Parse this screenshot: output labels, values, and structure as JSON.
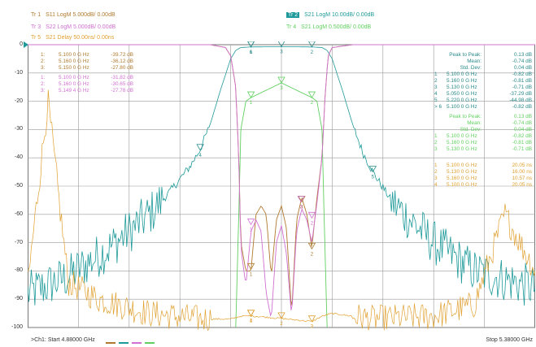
{
  "header": {
    "tr1": {
      "label": "Tr 1",
      "text": "S11 LogM 5.000dB/ 0.00dB"
    },
    "tr2": {
      "label": "Tr 2",
      "text": "S21 LogM 10.00dB/ 0.00dB"
    },
    "tr3": {
      "label": "Tr 3",
      "text": "S22 LogM 5.000dB/ 0.00dB"
    },
    "tr4": {
      "label": "Tr 4",
      "text": "S21 LogM 0.500dB/ 0.00dB"
    },
    "tr5": {
      "label": "Tr 5",
      "text": "S21 Delay 50.00ns/ 0.00ns"
    }
  },
  "colors": {
    "tr1": "#b07a2e",
    "tr2": "#1f9a9a",
    "tr3": "#d070d0",
    "tr4": "#60d060",
    "tr5": "#e0a030"
  },
  "y_ticks": [
    "0",
    "-10",
    "-20",
    "-30",
    "-40",
    "-50",
    "-60",
    "-70",
    "-80",
    "-90",
    "-100"
  ],
  "readouts": {
    "tr1": [
      {
        "n": "1:",
        "f": "5.100 0 G Hz",
        "v": "-39.72 dB"
      },
      {
        "n": "2:",
        "f": "5.160 0 G Hz",
        "v": "-36.12 dB"
      },
      {
        "n": "3:",
        "f": "5.150 0 G Hz",
        "v": "-27.80 dB"
      }
    ],
    "tr3": [
      {
        "n": "1:",
        "f": "5.100 0 G Hz",
        "v": "-31.82 dB"
      },
      {
        "n": "2:",
        "f": "5.160 0 G Hz",
        "v": "-30.65 dB"
      },
      {
        "n": "3:",
        "f": "5.149 4 G Hz",
        "v": "-27.78 dB"
      }
    ],
    "tr2_stats": [
      {
        "k": "Peak to Peak:",
        "v": "0.13 dB"
      },
      {
        "k": "Mean:",
        "v": "-0.74 dB"
      },
      {
        "k": "Std. Dev:",
        "v": "0.04 dB"
      }
    ],
    "tr2": [
      {
        "n": "1",
        "f": "5.100 0 G Hz",
        "v": "-0.82 dB"
      },
      {
        "n": "2",
        "f": "5.160 0 G Hz",
        "v": "-0.81 dB"
      },
      {
        "n": "3",
        "f": "5.130 0 G Hz",
        "v": "-0.71 dB"
      },
      {
        "n": "4",
        "f": "5.050 0 G Hz",
        "v": "-37.29 dB"
      },
      {
        "n": "5",
        "f": "5.220 0 G Hz",
        "v": "-44.98 dB"
      },
      {
        "n": "> 6",
        "f": "5.100 0 G Hz",
        "v": "-0.82 dB"
      }
    ],
    "tr4_stats": [
      {
        "k": "Peak to Peak:",
        "v": "0.13 dB"
      },
      {
        "k": "Mean:",
        "v": "-0.74 dB"
      },
      {
        "k": "Std. Dev:",
        "v": "0.04 dB"
      }
    ],
    "tr4": [
      {
        "n": "1",
        "f": "5.100 0 G Hz",
        "v": "-0.82 dB"
      },
      {
        "n": "2",
        "f": "5.160 0 G Hz",
        "v": "-0.81 dB"
      },
      {
        "n": "3",
        "f": "5.130 0 G Hz",
        "v": "-0.71 dB"
      }
    ],
    "tr5": [
      {
        "n": "1",
        "f": "5.100 0 G Hz",
        "v": "20.05 ns"
      },
      {
        "n": "2",
        "f": "5.130 0 G Hz",
        "v": "16.00 ns"
      },
      {
        "n": "3",
        "f": "5.160 0 G Hz",
        "v": "10.57 ns"
      },
      {
        "n": "4",
        "f": "5.100 0 G Hz",
        "v": "20.05 ns"
      }
    ]
  },
  "footer": {
    "start": ">Ch1:  Start  4.88000 GHz",
    "stop": "Stop  5.38000 GHz"
  },
  "chart_data": {
    "type": "line",
    "x_label": "",
    "y_label": "",
    "xlim": [
      4.88,
      5.38
    ],
    "ylim": [
      -100,
      0
    ],
    "x_unit": "GHz",
    "y_unit": "dB",
    "grid": true,
    "series": [
      {
        "name": "S21 LogM 10.00dB/ 0.00dB",
        "trace": "tr2",
        "x": [
          4.88,
          4.92,
          4.96,
          5.0,
          5.02,
          5.04,
          5.05,
          5.06,
          5.07,
          5.08,
          5.085,
          5.09,
          5.1,
          5.13,
          5.16,
          5.17,
          5.175,
          5.18,
          5.19,
          5.2,
          5.21,
          5.22,
          5.24,
          5.28,
          5.32,
          5.38
        ],
        "y": [
          -88,
          -82,
          -72,
          -60,
          -52,
          -43,
          -37,
          -28,
          -16,
          -5,
          -2,
          -1,
          -0.8,
          -0.7,
          -0.8,
          -1,
          -2,
          -5,
          -16,
          -28,
          -38,
          -45,
          -56,
          -70,
          -80,
          -86
        ]
      },
      {
        "name": "S21 LogM 0.500dB/ 0.00dB",
        "trace": "tr4",
        "x": [
          5.085,
          5.088,
          5.09,
          5.095,
          5.1,
          5.13,
          5.16,
          5.165,
          5.17,
          5.172,
          5.175
        ],
        "y": [
          -100,
          -60,
          -30,
          -20,
          -18.7,
          -13.5,
          -18.7,
          -20,
          -30,
          -60,
          -100
        ]
      },
      {
        "name": "S11 LogM 5.000dB/ 0.00dB",
        "trace": "tr1",
        "x": [
          4.88,
          5.06,
          5.075,
          5.08,
          5.085,
          5.088,
          5.09,
          5.095,
          5.1,
          5.105,
          5.11,
          5.115,
          5.12,
          5.125,
          5.13,
          5.135,
          5.14,
          5.145,
          5.15,
          5.155,
          5.16,
          5.165,
          5.17,
          5.173,
          5.176,
          5.18,
          5.2,
          5.38
        ],
        "y": [
          0,
          0,
          -1,
          -4,
          -15,
          -40,
          -70,
          -80,
          -80,
          -60,
          -57,
          -60,
          -82,
          -62,
          -57,
          -65,
          -95,
          -62,
          -54,
          -60,
          -72,
          -54,
          -40,
          -18,
          -4,
          -1,
          0,
          0
        ]
      },
      {
        "name": "S22 LogM 5.000dB/ 0.00dB",
        "trace": "tr3",
        "x": [
          4.88,
          5.06,
          5.075,
          5.08,
          5.085,
          5.088,
          5.09,
          5.095,
          5.1,
          5.105,
          5.11,
          5.115,
          5.12,
          5.125,
          5.13,
          5.135,
          5.14,
          5.145,
          5.15,
          5.155,
          5.16,
          5.165,
          5.17,
          5.173,
          5.176,
          5.18,
          5.2,
          5.38
        ],
        "y": [
          0,
          0,
          -1,
          -4,
          -15,
          -40,
          -72,
          -85,
          -66,
          -62,
          -66,
          -88,
          -97,
          -70,
          -64,
          -74,
          -96,
          -66,
          -58,
          -62,
          -70,
          -56,
          -40,
          -18,
          -4,
          -1,
          0,
          0
        ]
      },
      {
        "name": "S21 Delay 50.00ns/ 0.00ns",
        "trace": "tr5",
        "x": [
          4.88,
          4.9,
          4.92,
          4.95,
          5.0,
          5.05,
          5.08,
          5.09,
          5.1,
          5.13,
          5.16,
          5.17,
          5.18,
          5.22,
          5.28,
          5.32,
          5.35,
          5.38
        ],
        "y": [
          -85,
          -20,
          -84,
          -90,
          -95,
          -97,
          -97,
          -96,
          -95.9,
          -96.8,
          -97.9,
          -96,
          -95,
          -97,
          -96,
          -92,
          -60,
          -80
        ]
      }
    ],
    "markers": [
      {
        "trace": "tr2",
        "label": "1",
        "x": 5.1,
        "y": -0.82
      },
      {
        "trace": "tr2",
        "label": "2",
        "x": 5.16,
        "y": -0.81
      },
      {
        "trace": "tr2",
        "label": "3",
        "x": 5.13,
        "y": -0.71
      },
      {
        "trace": "tr2",
        "label": "4",
        "x": 5.05,
        "y": -37.29
      },
      {
        "trace": "tr2",
        "label": "5",
        "x": 5.22,
        "y": -44.98
      },
      {
        "trace": "tr2",
        "label": "6",
        "x": 5.1,
        "y": -0.82
      },
      {
        "trace": "tr4",
        "label": "1",
        "x": 5.1,
        "y": -18.7
      },
      {
        "trace": "tr4",
        "label": "2",
        "x": 5.16,
        "y": -18.7
      },
      {
        "trace": "tr4",
        "label": "3",
        "x": 5.13,
        "y": -13.5
      },
      {
        "trace": "tr1",
        "label": "1",
        "x": 5.1,
        "y": -79.4
      },
      {
        "trace": "tr1",
        "label": "2",
        "x": 5.16,
        "y": -72.2
      },
      {
        "trace": "tr1",
        "label": "3",
        "x": 5.15,
        "y": -55.6
      },
      {
        "trace": "tr3",
        "label": "1",
        "x": 5.1,
        "y": -63.6
      },
      {
        "trace": "tr3",
        "label": "2",
        "x": 5.16,
        "y": -61.3
      },
      {
        "trace": "tr3",
        "label": "3",
        "x": 5.1494,
        "y": -55.6
      },
      {
        "trace": "tr5",
        "label": "1",
        "x": 5.1,
        "y": -95.9
      },
      {
        "trace": "tr5",
        "label": "2",
        "x": 5.13,
        "y": -96.8
      },
      {
        "trace": "tr5",
        "label": "3",
        "x": 5.16,
        "y": -97.9
      },
      {
        "trace": "tr5",
        "label": "4",
        "x": 5.1,
        "y": -95.9
      }
    ]
  }
}
